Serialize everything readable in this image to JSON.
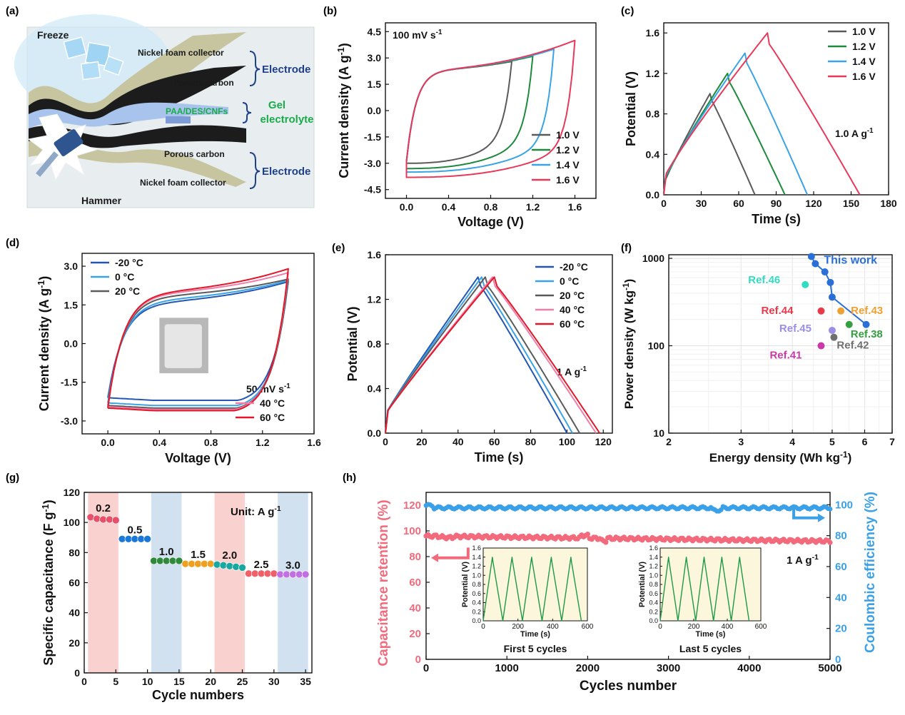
{
  "panel_labels": [
    "(a)",
    "(b)",
    "(c)",
    "(d)",
    "(e)",
    "(f)",
    "(g)",
    "(h)"
  ],
  "schematic": {
    "freeze": "Freeze",
    "hammer": "Hammer",
    "nickel_foam_top": "Nickel foam collector",
    "porous_carbon_top": "Porous carbon",
    "electrode_top": "Electrode",
    "gel_material": "PAA/DES/CNFs",
    "gel_label_1": "Gel",
    "gel_label_2": "electrolyte",
    "porous_carbon_bottom": "Porous carbon",
    "nickel_foam_bottom": "Nickel foam collector",
    "electrode_bottom": "Electrode"
  },
  "colors": {
    "gray": "#5a5a5a",
    "green": "#1e8a3c",
    "lightblue": "#3aa3e8",
    "red": "#e8395b",
    "darkblue": "#2457b5",
    "pink": "#ef7fa8",
    "darkred": "#e0182a",
    "electrode_label": "#1e3f8a",
    "gel_label": "#1aaa4a",
    "ret_red": "#f26a7c",
    "ce_blue": "#3aa0e8",
    "inset_green": "#1e9a46",
    "inset_bg": "#fcf6dc"
  },
  "chart_data": [
    {
      "id": "b",
      "type": "line",
      "title": "",
      "xlabel": "Voltage (V)",
      "ylabel": "Current density (A g-1)",
      "xlim": [
        -0.2,
        1.8
      ],
      "ylim": [
        -5,
        5
      ],
      "xticks": [
        "0.0",
        "0.4",
        "0.8",
        "1.2",
        "1.6"
      ],
      "yticks": [
        "-4.5",
        "-3.0",
        "-1.5",
        "0.0",
        "1.5",
        "3.0",
        "4.5"
      ],
      "annotation": "100 mV s-1",
      "legend_position": "bottom-right",
      "series": [
        {
          "name": "1.0 V",
          "color": "#5a5a5a",
          "vmax": 1.0,
          "i_top_end": 2.8,
          "i_bottom_start": -3.0,
          "i_bottom_end": -1.5
        },
        {
          "name": "1.2 V",
          "color": "#1e8a3c",
          "vmax": 1.2,
          "i_top_end": 3.1,
          "i_bottom_start": -3.3,
          "i_bottom_end": -1.6
        },
        {
          "name": "1.4 V",
          "color": "#3aa3e8",
          "vmax": 1.4,
          "i_top_end": 3.5,
          "i_bottom_start": -3.5,
          "i_bottom_end": -1.8
        },
        {
          "name": "1.6 V",
          "color": "#e8395b",
          "vmax": 1.6,
          "i_top_end": 4.0,
          "i_bottom_start": -3.8,
          "i_bottom_end": -2.0
        }
      ]
    },
    {
      "id": "c",
      "type": "line",
      "title": "",
      "xlabel": "Time (s)",
      "ylabel": "Potential (V)",
      "xlim": [
        0,
        180
      ],
      "ylim": [
        0,
        1.7
      ],
      "xticks": [
        "0",
        "30",
        "60",
        "90",
        "120",
        "150",
        "180"
      ],
      "yticks": [
        "0.0",
        "0.4",
        "0.8",
        "1.2",
        "1.6"
      ],
      "annotation": "1.0 A g-1",
      "legend_position": "top-right",
      "series": [
        {
          "name": "1.0 V",
          "color": "#5a5a5a",
          "vmax": 1.0,
          "t_charge": 37,
          "t_end": 73
        },
        {
          "name": "1.2 V",
          "color": "#1e8a3c",
          "vmax": 1.2,
          "t_charge": 51,
          "t_end": 97
        },
        {
          "name": "1.4 V",
          "color": "#3aa3e8",
          "vmax": 1.4,
          "t_charge": 65,
          "t_end": 115
        },
        {
          "name": "1.6 V",
          "color": "#e8395b",
          "vmax": 1.6,
          "t_charge": 83,
          "t_end": 157
        }
      ]
    },
    {
      "id": "d",
      "type": "line",
      "title": "",
      "xlabel": "Voltage (V)",
      "ylabel": "Current density (A g-1)",
      "xlim": [
        -0.2,
        1.6
      ],
      "ylim": [
        -3.5,
        3.5
      ],
      "xticks": [
        "0.0",
        "0.4",
        "0.8",
        "1.2",
        "1.6"
      ],
      "yticks": [
        "-3.0",
        "-1.5",
        "0.0",
        "1.5",
        "3.0"
      ],
      "annotation": "50 mV s-1",
      "legend_position": "top-left / bottom-right",
      "series": [
        {
          "name": "-20 °C",
          "color": "#2457b5",
          "i_top_mid": 1.6,
          "i_top_end": 2.4,
          "i_bottom_start": -2.1,
          "i_bottom_mid": -1.8
        },
        {
          "name": "0 °C",
          "color": "#3aa3e8",
          "i_top_mid": 1.7,
          "i_top_end": 2.45,
          "i_bottom_start": -2.3,
          "i_bottom_mid": -1.9
        },
        {
          "name": "20 °C",
          "color": "#5a5a5a",
          "i_top_mid": 1.85,
          "i_top_end": 2.5,
          "i_bottom_start": -2.4,
          "i_bottom_mid": -2.0
        },
        {
          "name": "40 °C",
          "color": "#ef7fa8",
          "i_top_mid": 1.95,
          "i_top_end": 2.75,
          "i_bottom_start": -2.45,
          "i_bottom_mid": -2.05
        },
        {
          "name": "60 °C",
          "color": "#e0182a",
          "i_top_mid": 2.0,
          "i_top_end": 2.9,
          "i_bottom_start": -2.5,
          "i_bottom_mid": -2.1
        }
      ]
    },
    {
      "id": "e",
      "type": "line",
      "title": "",
      "xlabel": "Time (s)",
      "ylabel": "Potential (V)",
      "xlim": [
        0,
        125
      ],
      "ylim": [
        0,
        1.6
      ],
      "xticks": [
        "0",
        "20",
        "40",
        "60",
        "80",
        "100",
        "120"
      ],
      "yticks": [
        "0.0",
        "0.4",
        "0.8",
        "1.2",
        "1.6"
      ],
      "annotation": "1 A g-1",
      "legend_position": "top-right",
      "series": [
        {
          "name": "-20 °C",
          "color": "#2457b5",
          "t_charge": 51,
          "t_end": 100
        },
        {
          "name": "0 °C",
          "color": "#3aa3e8",
          "t_charge": 53,
          "t_end": 103
        },
        {
          "name": "20 °C",
          "color": "#5a5a5a",
          "t_charge": 55,
          "t_end": 107
        },
        {
          "name": "40 °C",
          "color": "#ef7fa8",
          "t_charge": 59,
          "t_end": 116
        },
        {
          "name": "60 °C",
          "color": "#e0182a",
          "t_charge": 60,
          "t_end": 118
        }
      ]
    },
    {
      "id": "f",
      "type": "scatter",
      "title": "",
      "xlabel": "Energy density (Wh kg-1)",
      "ylabel": "Power density (W kg-1)",
      "xscale": "log",
      "yscale": "log",
      "xlim": [
        2,
        7
      ],
      "ylim": [
        10,
        1100
      ],
      "xticks": [
        "2",
        "3",
        "4",
        "5",
        "6",
        "7"
      ],
      "yticks": [
        "10",
        "100",
        "1000"
      ],
      "this_work": {
        "label": "This work",
        "color": "#2a6fd8",
        "points": [
          [
            4.45,
            1050
          ],
          [
            4.55,
            870
          ],
          [
            4.8,
            700
          ],
          [
            4.95,
            530
          ],
          [
            5.0,
            360
          ],
          [
            6.05,
            175
          ]
        ]
      },
      "refs": [
        {
          "label": "Ref.46",
          "x": 4.3,
          "y": 500,
          "color": "#33dcc0"
        },
        {
          "label": "Ref.44",
          "x": 4.7,
          "y": 250,
          "color": "#e83a4a"
        },
        {
          "label": "Ref.43",
          "x": 5.25,
          "y": 250,
          "color": "#f0a030"
        },
        {
          "label": "Ref.45",
          "x": 5.0,
          "y": 150,
          "color": "#9a8ee8"
        },
        {
          "label": "Ref.38",
          "x": 5.5,
          "y": 175,
          "color": "#36a040"
        },
        {
          "label": "Ref.42",
          "x": 5.05,
          "y": 125,
          "color": "#707070"
        },
        {
          "label": "Ref.41",
          "x": 4.7,
          "y": 100,
          "color": "#c93aa8"
        }
      ]
    },
    {
      "id": "g",
      "type": "scatter",
      "title": "",
      "xlabel": "Cycle numbers",
      "ylabel": "Specific capacitance (F g-1)",
      "xlim": [
        0,
        36
      ],
      "ylim": [
        0,
        120
      ],
      "xticks": [
        "0",
        "5",
        "10",
        "15",
        "20",
        "25",
        "30",
        "35"
      ],
      "yticks": [
        "0",
        "20",
        "40",
        "60",
        "80",
        "100",
        "120"
      ],
      "annotation": "Unit: A g-1",
      "groups": [
        {
          "rate": "0.2",
          "color": "#e8506a",
          "values": [
            103.5,
            102.5,
            102,
            102,
            101.5
          ]
        },
        {
          "rate": "0.5",
          "color": "#1a78d8",
          "values": [
            89,
            89,
            89,
            89,
            89
          ]
        },
        {
          "rate": "1.0",
          "color": "#2e8a3a",
          "values": [
            74.5,
            74.5,
            74.5,
            74.5,
            74.5
          ]
        },
        {
          "rate": "1.5",
          "color": "#f0a020",
          "values": [
            72.5,
            72.5,
            72.5,
            72.5,
            72.5
          ]
        },
        {
          "rate": "2.0",
          "color": "#18a8a0",
          "values": [
            72,
            71.5,
            71,
            70.5,
            70
          ]
        },
        {
          "rate": "2.5",
          "color": "#f06068",
          "values": [
            66,
            66,
            66,
            66,
            66
          ]
        },
        {
          "rate": "3.0",
          "color": "#c070e0",
          "values": [
            65.5,
            65.5,
            65.5,
            65.5,
            65.5
          ]
        }
      ],
      "shaded_bands": [
        [
          0.6,
          5.4,
          "#f9d2d0"
        ],
        [
          10.6,
          15.4,
          "#d2e1f0"
        ],
        [
          20.6,
          25.4,
          "#f9d2d0"
        ],
        [
          30.6,
          35.4,
          "#d2e1f0"
        ]
      ]
    },
    {
      "id": "h",
      "type": "scatter",
      "title": "",
      "xlabel": "Cycles number",
      "ylabel_left": "Capacitance retention (%)",
      "ylabel_right": "Coulombic efficiency (%)",
      "xlim": [
        0,
        5000
      ],
      "ylim_left": [
        0,
        130
      ],
      "ylim_right": [
        0,
        108
      ],
      "xticks": [
        "0",
        "1000",
        "2000",
        "3000",
        "4000",
        "5000"
      ],
      "yticks_left": [
        "0",
        "20",
        "40",
        "60",
        "80",
        "100",
        "120"
      ],
      "yticks_right": [
        "0",
        "20",
        "40",
        "60",
        "80",
        "100"
      ],
      "annotation": "1 A g-1",
      "retention_level": 96,
      "retention_end": 92,
      "ce_level": 98,
      "insets": [
        {
          "caption": "First 5 cycles",
          "xlabel": "Time (s)",
          "ylabel": "Potential (V)",
          "xticks": [
            "0",
            "200",
            "400",
            "600"
          ],
          "yticks": [
            "0.0",
            "0.2",
            "0.4",
            "0.6",
            "0.8",
            "1.0",
            "1.2",
            "1.4",
            "1.6"
          ],
          "xlim": [
            0,
            600
          ],
          "ylim": [
            0,
            1.6
          ],
          "peaks": 5,
          "period": 113
        },
        {
          "caption": "Last 5 cycles",
          "xlabel": "Time (s)",
          "ylabel": "Potential (V)",
          "xticks": [
            "0",
            "200",
            "400",
            "600"
          ],
          "yticks": [
            "0.0",
            "0.2",
            "0.4",
            "0.6",
            "0.8",
            "1.0",
            "1.2",
            "1.4",
            "1.6"
          ],
          "xlim": [
            0,
            600
          ],
          "ylim": [
            0,
            1.6
          ],
          "peaks": 5,
          "period": 106
        }
      ]
    }
  ]
}
